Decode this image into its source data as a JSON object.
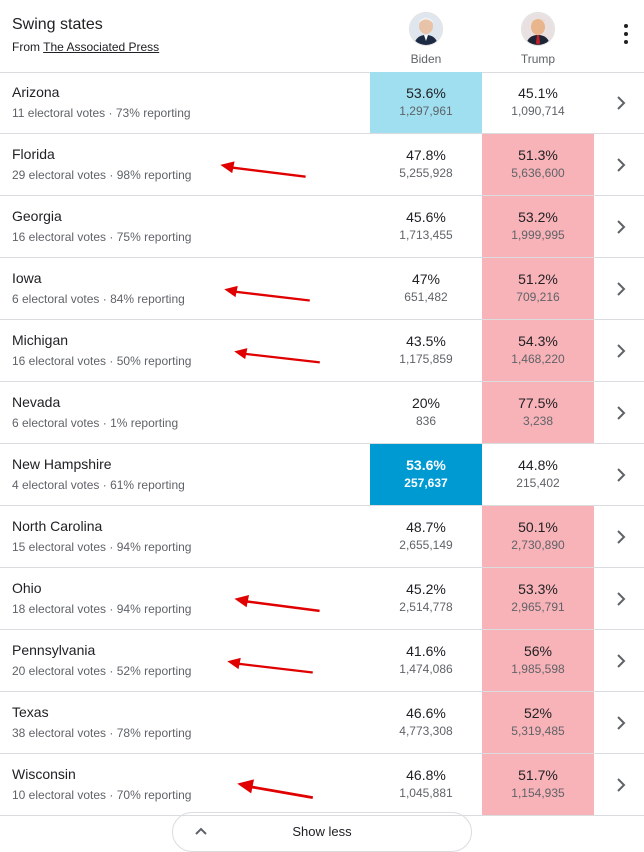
{
  "header": {
    "title": "Swing states",
    "source_prefix": "From",
    "source_link": "The Associated Press",
    "candidates": [
      {
        "name": "Biden"
      },
      {
        "name": "Trump"
      }
    ]
  },
  "rows": [
    {
      "state": "Arizona",
      "electoral": "11 electoral votes",
      "reporting": "73% reporting",
      "biden_pct": "53.6%",
      "biden_votes": "1,297,961",
      "trump_pct": "45.1%",
      "trump_votes": "1,090,714",
      "winner": "biden-lead",
      "arrow": false
    },
    {
      "state": "Florida",
      "electoral": "29 electoral votes",
      "reporting": "98% reporting",
      "biden_pct": "47.8%",
      "biden_votes": "5,255,928",
      "trump_pct": "51.3%",
      "trump_votes": "5,636,600",
      "winner": "trump-lead",
      "arrow": true
    },
    {
      "state": "Georgia",
      "electoral": "16 electoral votes",
      "reporting": "75% reporting",
      "biden_pct": "45.6%",
      "biden_votes": "1,713,455",
      "trump_pct": "53.2%",
      "trump_votes": "1,999,995",
      "winner": "trump-lead",
      "arrow": false
    },
    {
      "state": "Iowa",
      "electoral": "6 electoral votes",
      "reporting": "84% reporting",
      "biden_pct": "47%",
      "biden_votes": "651,482",
      "trump_pct": "51.2%",
      "trump_votes": "709,216",
      "winner": "trump-lead",
      "arrow": true
    },
    {
      "state": "Michigan",
      "electoral": "16 electoral votes",
      "reporting": "50% reporting",
      "biden_pct": "43.5%",
      "biden_votes": "1,175,859",
      "trump_pct": "54.3%",
      "trump_votes": "1,468,220",
      "winner": "trump-lead",
      "arrow": true
    },
    {
      "state": "Nevada",
      "electoral": "6 electoral votes",
      "reporting": "1% reporting",
      "biden_pct": "20%",
      "biden_votes": "836",
      "trump_pct": "77.5%",
      "trump_votes": "3,238",
      "winner": "trump-lead",
      "arrow": false
    },
    {
      "state": "New Hampshire",
      "electoral": "4 electoral votes",
      "reporting": "61% reporting",
      "biden_pct": "53.6%",
      "biden_votes": "257,637",
      "trump_pct": "44.8%",
      "trump_votes": "215,402",
      "winner": "biden-win",
      "arrow": false
    },
    {
      "state": "North Carolina",
      "electoral": "15 electoral votes",
      "reporting": "94% reporting",
      "biden_pct": "48.7%",
      "biden_votes": "2,655,149",
      "trump_pct": "50.1%",
      "trump_votes": "2,730,890",
      "winner": "trump-lead",
      "arrow": false
    },
    {
      "state": "Ohio",
      "electoral": "18 electoral votes",
      "reporting": "94% reporting",
      "biden_pct": "45.2%",
      "biden_votes": "2,514,778",
      "trump_pct": "53.3%",
      "trump_votes": "2,965,791",
      "winner": "trump-lead",
      "arrow": true
    },
    {
      "state": "Pennsylvania",
      "electoral": "20 electoral votes",
      "reporting": "52% reporting",
      "biden_pct": "41.6%",
      "biden_votes": "1,474,086",
      "trump_pct": "56%",
      "trump_votes": "1,985,598",
      "winner": "trump-lead",
      "arrow": true
    },
    {
      "state": "Texas",
      "electoral": "38 electoral votes",
      "reporting": "78% reporting",
      "biden_pct": "46.6%",
      "biden_votes": "4,773,308",
      "trump_pct": "52%",
      "trump_votes": "5,319,485",
      "winner": "trump-lead",
      "arrow": false
    },
    {
      "state": "Wisconsin",
      "electoral": "10 electoral votes",
      "reporting": "70% reporting",
      "biden_pct": "46.8%",
      "biden_votes": "1,045,881",
      "trump_pct": "51.7%",
      "trump_votes": "1,154,935",
      "winner": "trump-lead",
      "arrow": true
    }
  ],
  "footer": {
    "show_less_label": "Show less"
  },
  "colors": {
    "biden_lead": "#9fdfef",
    "biden_win": "#009ad3",
    "trump_lead": "#f8b3b8",
    "arrow": "#e00000"
  },
  "icons": {
    "row_chevron": "chevron-right-icon",
    "menu": "more-vert-icon",
    "annotation": "red-arrow-icon"
  }
}
